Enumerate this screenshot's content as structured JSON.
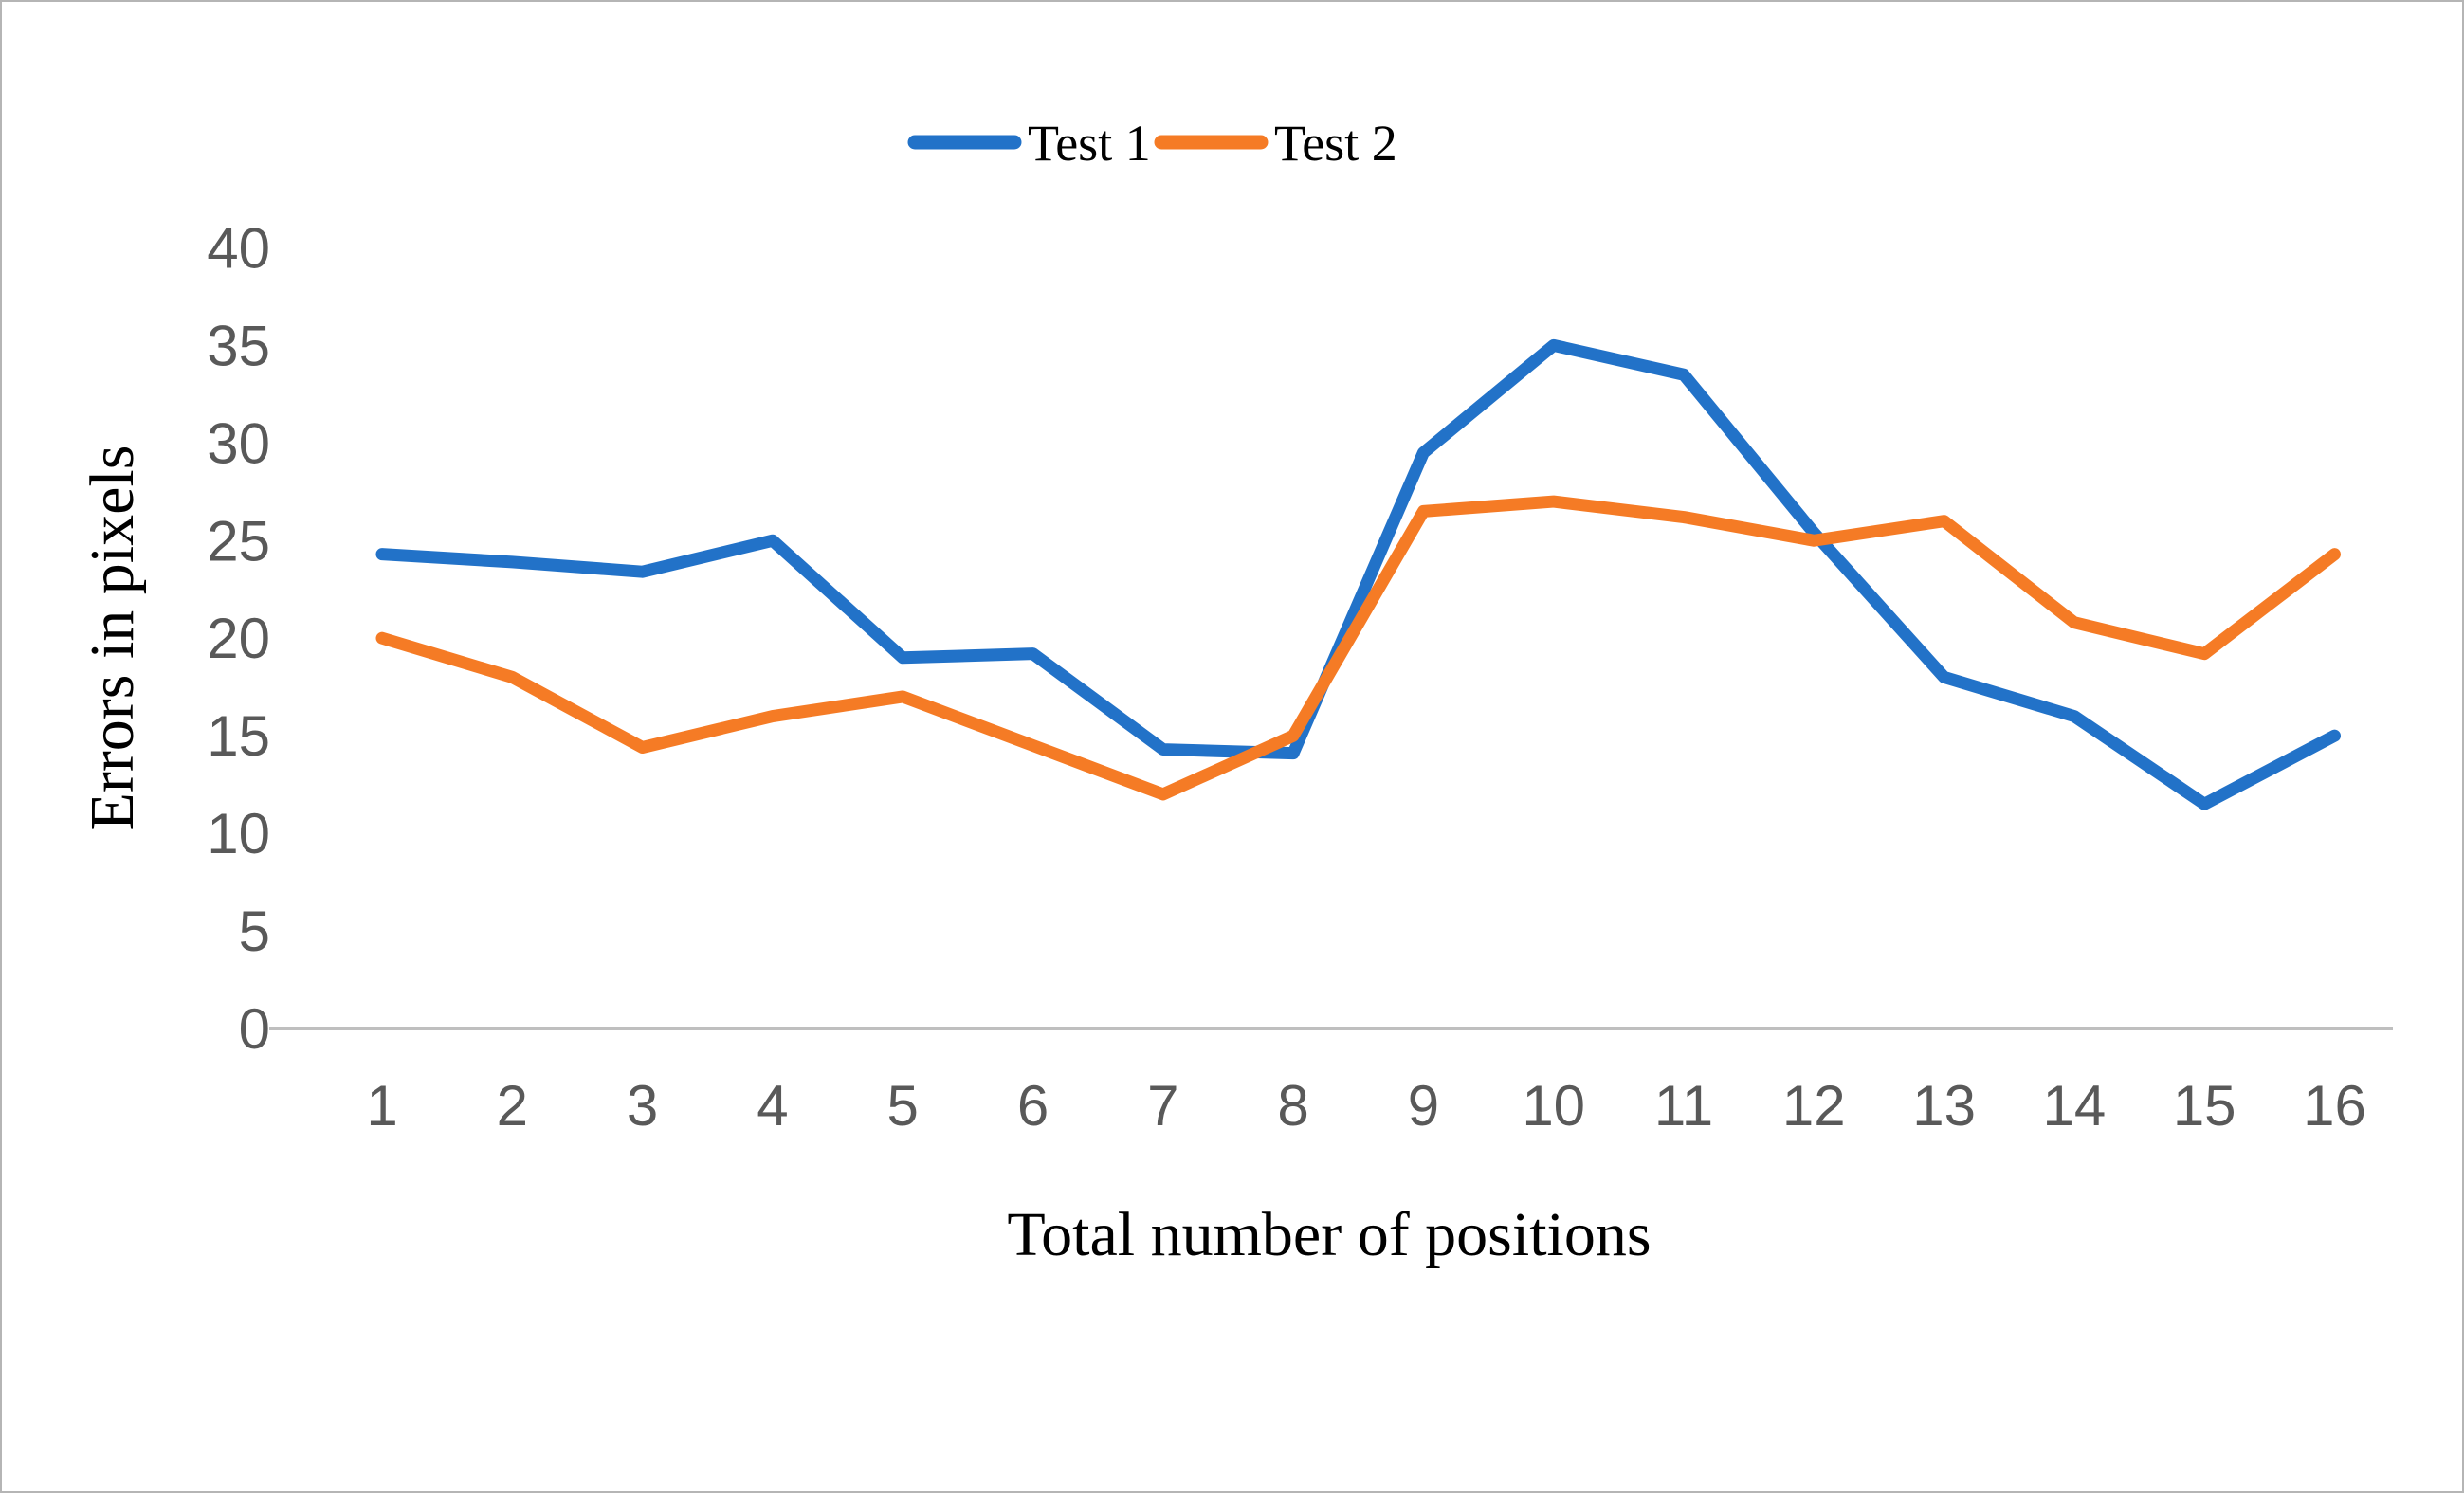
{
  "figure": {
    "background": "#ffffff",
    "border_color": "#b5b5b5"
  },
  "chart_data": {
    "type": "line",
    "title": "",
    "xlabel": "Total number of positions",
    "ylabel": "Errors in pixels",
    "categories": [
      1,
      2,
      3,
      4,
      5,
      6,
      7,
      8,
      9,
      10,
      11,
      12,
      13,
      14,
      15,
      16
    ],
    "series": [
      {
        "name": "Test 1",
        "color": "#2272c8",
        "values": [
          24.3,
          23.9,
          23.4,
          25.0,
          19.0,
          19.2,
          14.3,
          14.1,
          29.5,
          35.0,
          33.5,
          25.4,
          18.0,
          16.0,
          11.5,
          15.0
        ]
      },
      {
        "name": "Test 2",
        "color": "#f57b25",
        "values": [
          20.0,
          18.0,
          14.4,
          16.0,
          17.0,
          14.5,
          12.0,
          15.0,
          26.5,
          27.0,
          26.2,
          25.0,
          26.0,
          20.8,
          19.2,
          24.3
        ]
      }
    ],
    "ylim": [
      0,
      40
    ],
    "yticks": [
      0,
      5,
      10,
      15,
      20,
      25,
      30,
      35,
      40
    ],
    "grid": false,
    "legend_position": "top-center",
    "tick_color": "#595959",
    "axis_line_color": "#bfbfbf"
  }
}
